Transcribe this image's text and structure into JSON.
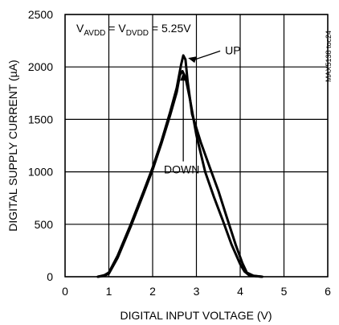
{
  "chart_data": {
    "type": "line",
    "xlabel": "DIGITAL INPUT VOLTAGE (V)",
    "ylabel": "DIGITAL SUPPLY CURRENT (µA)",
    "xlim": [
      0,
      6
    ],
    "ylim": [
      0,
      2500
    ],
    "x_ticks": [
      0,
      1,
      2,
      3,
      4,
      5,
      6
    ],
    "y_ticks": [
      0,
      500,
      1000,
      1500,
      2000,
      2500
    ],
    "grid": true,
    "condition_label": {
      "prefix": "V",
      "sub1": "AVDD",
      "mid": " = V",
      "sub2": "DVDD",
      "suffix": " = 5.25V"
    },
    "side_id": "MAX5138 toc24",
    "series": [
      {
        "name": "UP",
        "x": [
          0.75,
          0.9,
          1.0,
          1.2,
          1.5,
          1.8,
          2.0,
          2.2,
          2.4,
          2.55,
          2.65,
          2.7,
          2.75,
          2.8,
          2.9,
          3.1,
          3.3,
          3.5,
          3.7,
          3.9,
          4.05,
          4.15,
          4.3,
          4.5
        ],
        "y": [
          0,
          15,
          40,
          200,
          500,
          820,
          1040,
          1290,
          1570,
          1800,
          2020,
          2110,
          2070,
          1860,
          1550,
          1280,
          1050,
          820,
          560,
          300,
          130,
          40,
          10,
          0
        ]
      },
      {
        "name": "DOWN",
        "x": [
          0.75,
          0.9,
          1.0,
          1.2,
          1.5,
          1.8,
          2.0,
          2.2,
          2.4,
          2.55,
          2.62,
          2.68,
          2.75,
          2.85,
          3.0,
          3.2,
          3.4,
          3.6,
          3.8,
          4.0,
          4.1,
          4.2,
          4.35,
          4.5
        ],
        "y": [
          0,
          10,
          30,
          180,
          480,
          800,
          1020,
          1270,
          1540,
          1760,
          1920,
          1960,
          1900,
          1700,
          1350,
          1000,
          760,
          540,
          310,
          120,
          50,
          15,
          5,
          0
        ]
      }
    ],
    "annotations": [
      {
        "text": "UP",
        "target_x": 2.7,
        "target_y": 2100,
        "label_x": 3.8,
        "label_y": 2160
      },
      {
        "text": "DOWN",
        "target_x": 2.7,
        "target_y": 1900,
        "label_x": 2.7,
        "label_y": 1000
      }
    ]
  }
}
